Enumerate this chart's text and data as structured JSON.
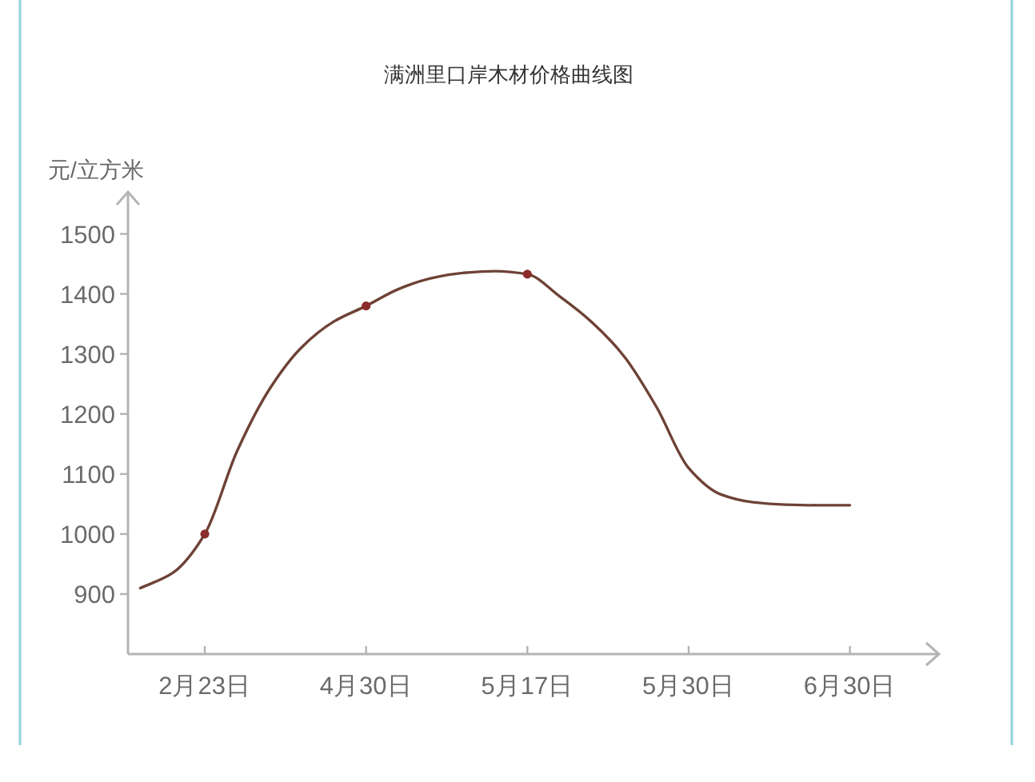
{
  "chart_data": {
    "type": "line",
    "title": "满洲里口岸木材价格曲线图",
    "ylabel": "元/立方米",
    "categories": [
      null,
      null,
      "2月23日",
      null,
      null,
      null,
      null,
      "4月30日",
      null,
      null,
      null,
      null,
      "5月17日",
      null,
      null,
      null,
      null,
      "5月30日",
      null,
      null,
      null,
      null,
      "6月30日"
    ],
    "ylim": [
      800,
      1570
    ],
    "yticks": [
      900,
      1000,
      1100,
      1200,
      1300,
      1400,
      1500
    ],
    "series": [
      {
        "color": "#6e4236",
        "marker": "none",
        "values": [
          910,
          935,
          1000,
          1138,
          1241,
          1311,
          1354,
          1380,
          1408,
          1426,
          1435,
          1438,
          1433,
          1396,
          1353,
          1296,
          1212,
          1110,
          1066,
          1053,
          1049,
          1048,
          1048
        ]
      },
      {
        "type": "scatter",
        "color": "#8b2b2b",
        "marker": "circle",
        "values": [
          null,
          null,
          1000,
          null,
          null,
          null,
          null,
          1380,
          null,
          null,
          null,
          null,
          1433,
          null,
          null,
          null,
          null,
          null,
          null,
          null,
          null,
          null,
          null
        ]
      }
    ]
  }
}
